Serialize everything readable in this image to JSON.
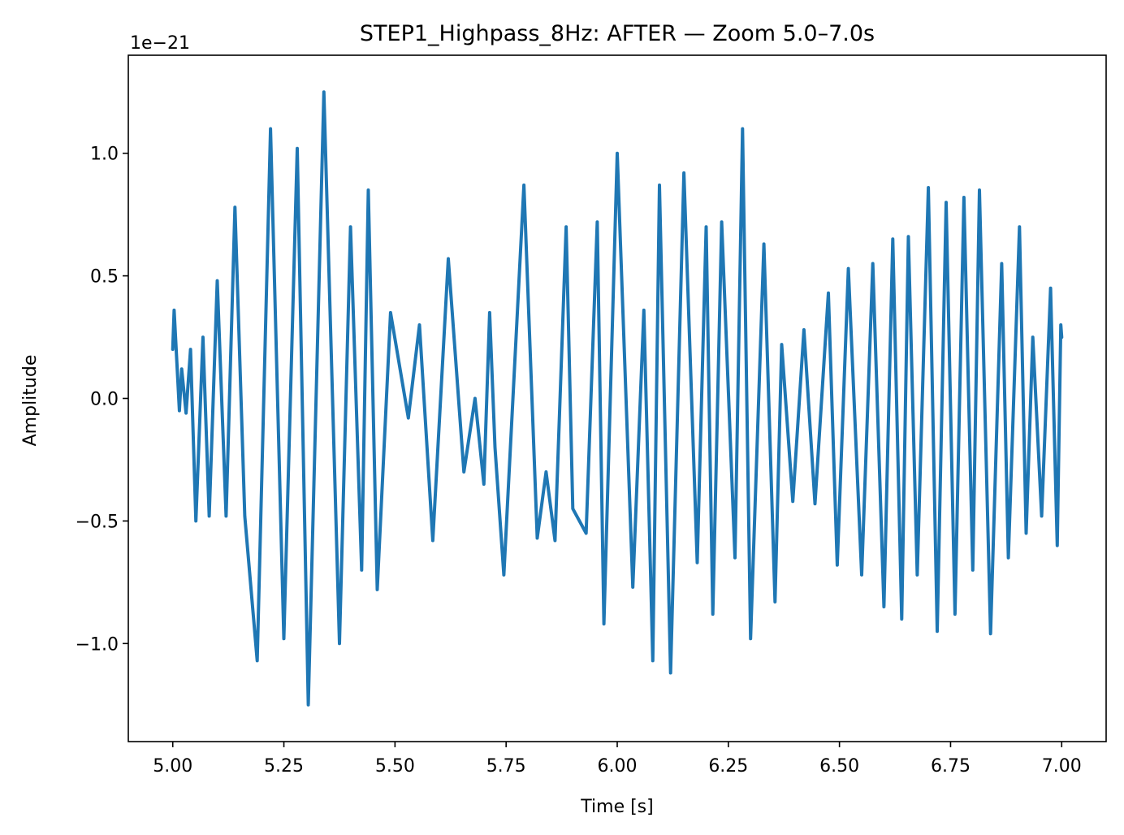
{
  "chart_data": {
    "type": "line",
    "title": "STEP1_Highpass_8Hz: AFTER — Zoom 5.0–7.0s",
    "xlabel": "Time [s]",
    "ylabel": "Amplitude",
    "offset_text": "1e−21",
    "xlim": [
      4.9,
      7.1
    ],
    "ylim": [
      -1.4,
      1.4
    ],
    "xticks": [
      5.0,
      5.25,
      5.5,
      5.75,
      6.0,
      6.25,
      6.5,
      6.75,
      7.0
    ],
    "xtick_labels": [
      "5.00",
      "5.25",
      "5.50",
      "5.75",
      "6.00",
      "6.25",
      "6.50",
      "6.75",
      "7.00"
    ],
    "yticks": [
      -1.0,
      -0.5,
      0.0,
      0.5,
      1.0
    ],
    "ytick_labels": [
      "−1.0",
      "−0.5",
      "0.0",
      "0.5",
      "1.0"
    ],
    "grid": false,
    "line_color": "#1f77b4",
    "series": [
      {
        "x": [
          5.0,
          5.003,
          5.015,
          5.02,
          5.03,
          5.04,
          5.052,
          5.068,
          5.082,
          5.1,
          5.12,
          5.14,
          5.162,
          5.19,
          5.22,
          5.25,
          5.28,
          5.305,
          5.34,
          5.375,
          5.4,
          5.425,
          5.44,
          5.46,
          5.49,
          5.53,
          5.555,
          5.585,
          5.62,
          5.655,
          5.68,
          5.7,
          5.713,
          5.725,
          5.745,
          5.79,
          5.82,
          5.84,
          5.86,
          5.885,
          5.9,
          5.93,
          5.955,
          5.97,
          6.0,
          6.035,
          6.06,
          6.08,
          6.095,
          6.12,
          6.15,
          6.18,
          6.2,
          6.215,
          6.235,
          6.265,
          6.282,
          6.3,
          6.33,
          6.355,
          6.37,
          6.395,
          6.42,
          6.445,
          6.475,
          6.495,
          6.52,
          6.55,
          6.575,
          6.6,
          6.62,
          6.64,
          6.655,
          6.675,
          6.7,
          6.72,
          6.74,
          6.76,
          6.78,
          6.8,
          6.815,
          6.84,
          6.865,
          6.88,
          6.905,
          6.92,
          6.935,
          6.955,
          6.975,
          6.99,
          6.998,
          7.0
        ],
        "y": [
          0.2,
          0.36,
          -0.05,
          0.12,
          -0.06,
          0.2,
          -0.5,
          0.25,
          -0.48,
          0.48,
          -0.48,
          0.78,
          -0.48,
          -1.07,
          1.1,
          -0.98,
          1.02,
          -1.25,
          1.25,
          -1.0,
          0.7,
          -0.7,
          0.85,
          -0.78,
          0.35,
          -0.08,
          0.3,
          -0.58,
          0.57,
          -0.3,
          0.0,
          -0.35,
          0.35,
          -0.2,
          -0.72,
          0.87,
          -0.57,
          -0.3,
          -0.58,
          0.7,
          -0.45,
          -0.55,
          0.72,
          -0.92,
          1.0,
          -0.77,
          0.36,
          -1.07,
          0.87,
          -1.12,
          0.92,
          -0.67,
          0.7,
          -0.88,
          0.72,
          -0.65,
          1.1,
          -0.98,
          0.63,
          -0.83,
          0.22,
          -0.42,
          0.28,
          -0.43,
          0.43,
          -0.68,
          0.53,
          -0.72,
          0.55,
          -0.85,
          0.65,
          -0.9,
          0.66,
          -0.72,
          0.86,
          -0.95,
          0.8,
          -0.88,
          0.82,
          -0.7,
          0.85,
          -0.96,
          0.55,
          -0.65,
          0.7,
          -0.55,
          0.25,
          -0.48,
          0.45,
          -0.6,
          0.3,
          0.25
        ]
      }
    ]
  }
}
